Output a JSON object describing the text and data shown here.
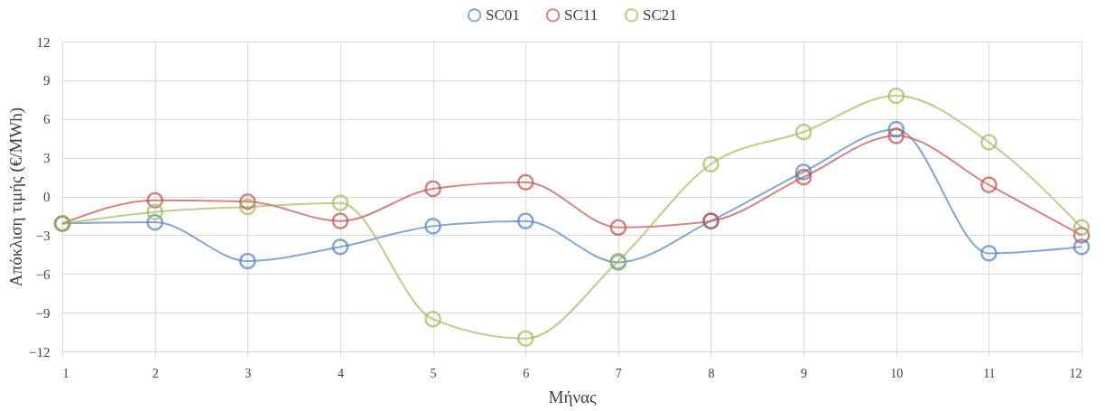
{
  "chart_data": {
    "type": "line",
    "xlabel": "Μήνας",
    "ylabel": "Απόκλιση τιμής (€/MWh)",
    "x": [
      1,
      2,
      3,
      4,
      5,
      6,
      7,
      8,
      9,
      10,
      11,
      12
    ],
    "xlim": [
      1,
      12
    ],
    "xticks": [
      1,
      2,
      3,
      4,
      5,
      6,
      7,
      8,
      9,
      10,
      11,
      12
    ],
    "ylim": [
      -12,
      12
    ],
    "yticks": [
      -12,
      -9,
      -6,
      -3,
      0,
      3,
      6,
      9,
      12
    ],
    "grid": true,
    "legend": "top",
    "marker": "circle",
    "line_style": "solid",
    "series": [
      {
        "name": "SC01",
        "color": "#4f81bd",
        "values": [
          -2.1,
          -2.0,
          -5.0,
          -3.9,
          -2.3,
          -1.9,
          -5.1,
          -1.9,
          1.9,
          5.2,
          -4.4,
          -3.9
        ]
      },
      {
        "name": "SC11",
        "color": "#c0504d",
        "values": [
          -2.1,
          -0.3,
          -0.4,
          -1.9,
          0.6,
          1.1,
          -2.4,
          -1.9,
          1.5,
          4.7,
          0.9,
          -3.0
        ]
      },
      {
        "name": "SC21",
        "color": "#9bbb59",
        "values": [
          -2.1,
          -1.2,
          -0.8,
          -0.5,
          -9.5,
          -11.0,
          -5.0,
          2.5,
          5.0,
          7.8,
          4.2,
          -2.4
        ]
      }
    ]
  }
}
